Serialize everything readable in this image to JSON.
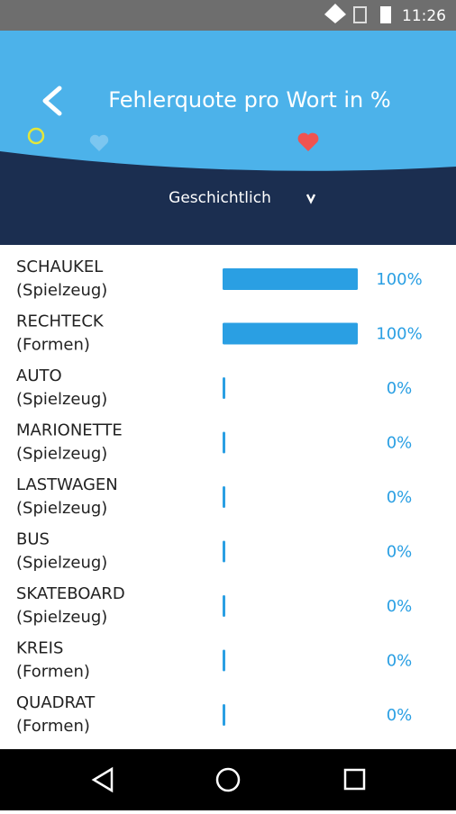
{
  "status_bar": {
    "time": "11:26"
  },
  "header": {
    "title": "Fehlerquote pro Wort in %",
    "filter": "Geschichtlich"
  },
  "items": [
    {
      "word": "SCHAUKEL",
      "category": "(Spielzeug)",
      "value": 100,
      "label": "100%"
    },
    {
      "word": "RECHTECK",
      "category": "(Formen)",
      "value": 100,
      "label": "100%"
    },
    {
      "word": "AUTO",
      "category": "(Spielzeug)",
      "value": 0,
      "label": "0%"
    },
    {
      "word": "MARIONETTE",
      "category": "(Spielzeug)",
      "value": 0,
      "label": "0%"
    },
    {
      "word": "LASTWAGEN",
      "category": "(Spielzeug)",
      "value": 0,
      "label": "0%"
    },
    {
      "word": "BUS",
      "category": "(Spielzeug)",
      "value": 0,
      "label": "0%"
    },
    {
      "word": "SKATEBOARD",
      "category": "(Spielzeug)",
      "value": 0,
      "label": "0%"
    },
    {
      "word": "KREIS",
      "category": "(Formen)",
      "value": 0,
      "label": "0%"
    },
    {
      "word": "QUADRAT",
      "category": "(Formen)",
      "value": 0,
      "label": "0%"
    }
  ]
}
